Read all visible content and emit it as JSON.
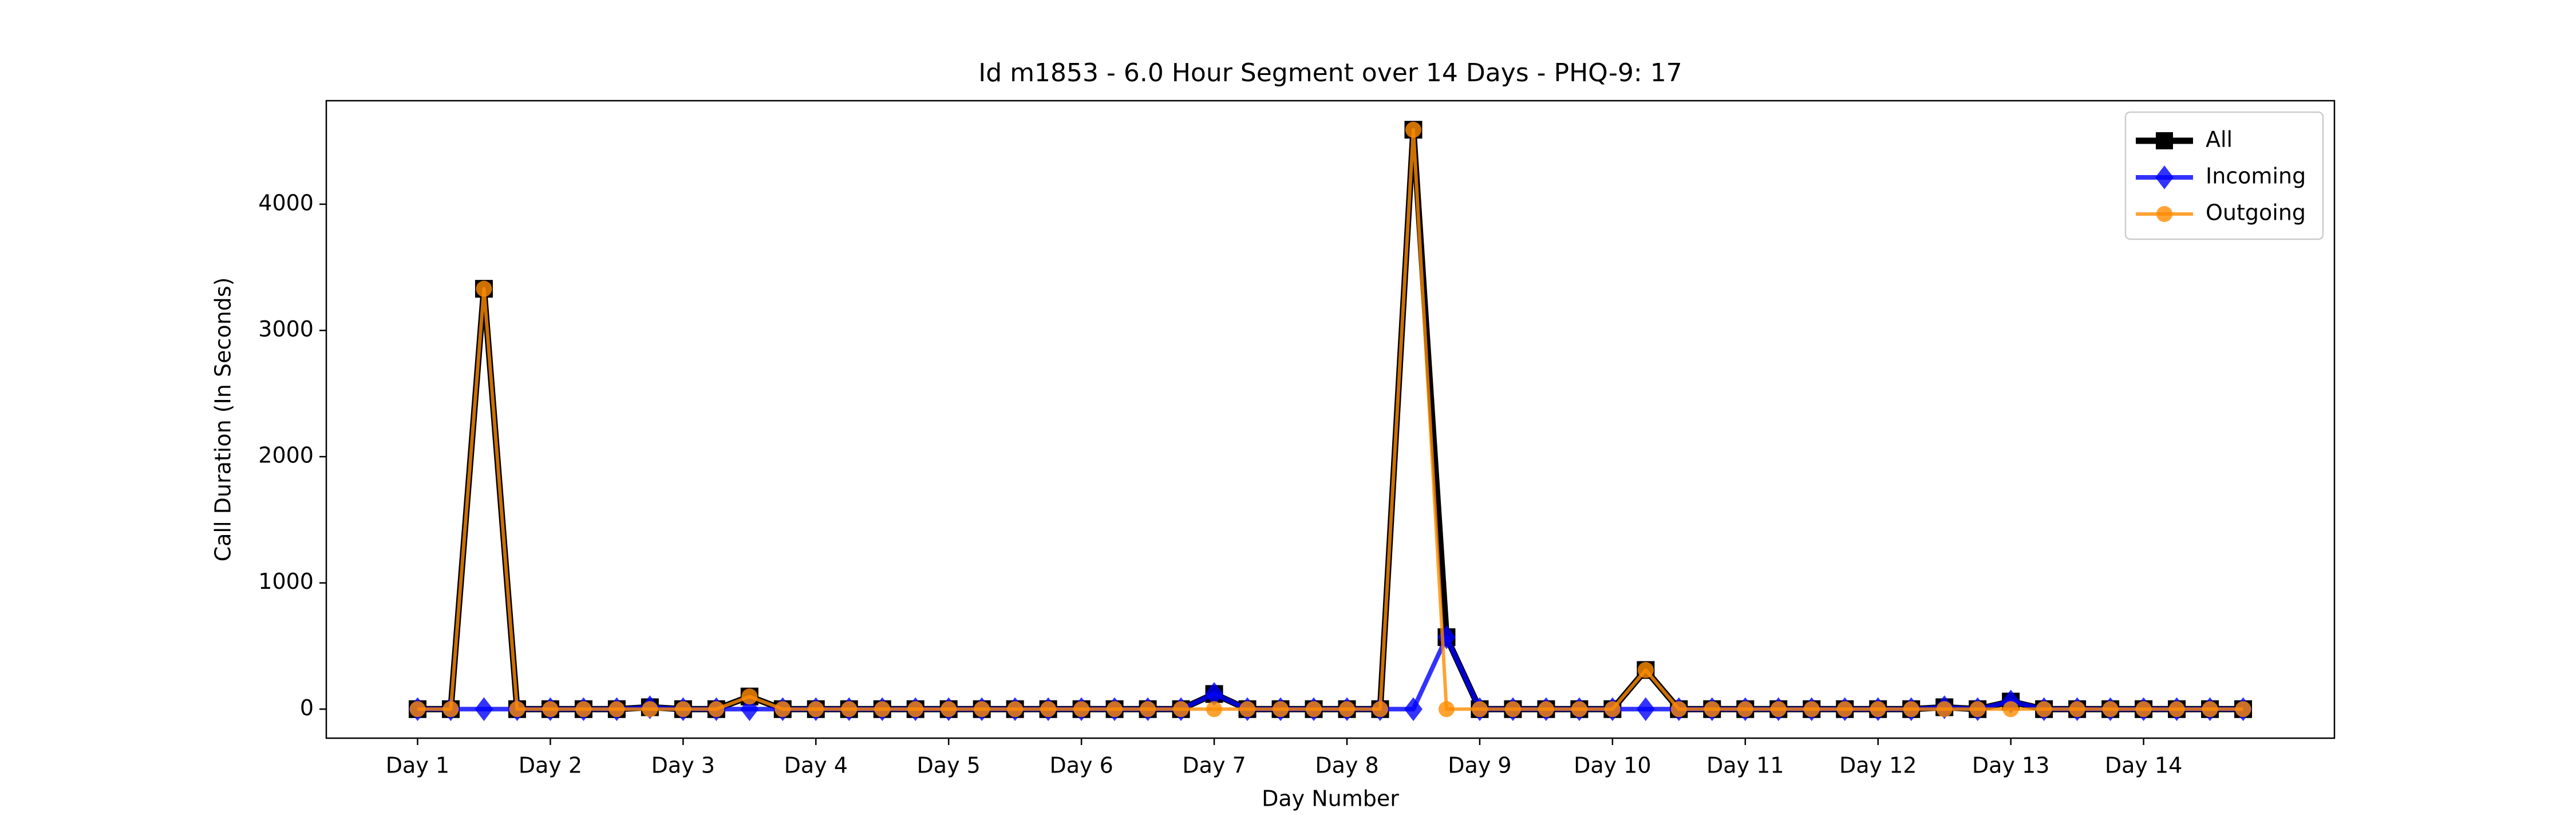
{
  "chart_data": {
    "type": "line",
    "title": "Id m1853 - 6.0 Hour Segment over 14 Days - PHQ-9: 17",
    "x_label": "Day Number",
    "y_label": "Call Duration (In Seconds)",
    "x": [
      0,
      1,
      2,
      3,
      4,
      5,
      6,
      7,
      8,
      9,
      10,
      11,
      12,
      13,
      14,
      15,
      16,
      17,
      18,
      19,
      20,
      21,
      22,
      23,
      24,
      25,
      26,
      27,
      28,
      29,
      30,
      31,
      32,
      33,
      34,
      35,
      36,
      37,
      38,
      39,
      40,
      41,
      42,
      43,
      44,
      45,
      46,
      47,
      48,
      49,
      50,
      51,
      52,
      53,
      54,
      55
    ],
    "series": [
      {
        "name": "All",
        "color": "#000000",
        "marker": "square",
        "values": [
          0,
          0,
          3330,
          0,
          0,
          0,
          0,
          15,
          0,
          0,
          100,
          0,
          0,
          0,
          0,
          0,
          0,
          0,
          0,
          0,
          0,
          0,
          0,
          0,
          120,
          0,
          0,
          0,
          0,
          0,
          4590,
          570,
          0,
          0,
          0,
          0,
          0,
          310,
          0,
          0,
          0,
          0,
          0,
          0,
          0,
          0,
          15,
          0,
          60,
          0,
          0,
          0,
          0,
          0,
          0,
          0
        ]
      },
      {
        "name": "Incoming",
        "color": "#0000ff",
        "marker": "diamond",
        "values": [
          0,
          0,
          0,
          0,
          0,
          0,
          0,
          15,
          0,
          0,
          0,
          0,
          0,
          0,
          0,
          0,
          0,
          0,
          0,
          0,
          0,
          0,
          0,
          0,
          120,
          0,
          0,
          0,
          0,
          0,
          0,
          570,
          0,
          0,
          0,
          0,
          0,
          0,
          0,
          0,
          0,
          0,
          0,
          0,
          0,
          0,
          15,
          0,
          60,
          0,
          0,
          0,
          0,
          0,
          0,
          0
        ]
      },
      {
        "name": "Outgoing",
        "color": "#ff8c00",
        "marker": "circle",
        "values": [
          0,
          0,
          3330,
          0,
          0,
          0,
          0,
          0,
          0,
          0,
          100,
          0,
          0,
          0,
          0,
          0,
          0,
          0,
          0,
          0,
          0,
          0,
          0,
          0,
          0,
          0,
          0,
          0,
          0,
          0,
          4590,
          0,
          0,
          0,
          0,
          0,
          0,
          310,
          0,
          0,
          0,
          0,
          0,
          0,
          0,
          0,
          0,
          0,
          0,
          0,
          0,
          0,
          0,
          0,
          0,
          0
        ]
      }
    ],
    "xlim": [
      -2.75,
      57.75
    ],
    "xticks": [
      {
        "value": 0,
        "label": "Day 1"
      },
      {
        "value": 4,
        "label": "Day 2"
      },
      {
        "value": 8,
        "label": "Day 3"
      },
      {
        "value": 12,
        "label": "Day 4"
      },
      {
        "value": 16,
        "label": "Day 5"
      },
      {
        "value": 20,
        "label": "Day 6"
      },
      {
        "value": 24,
        "label": "Day 7"
      },
      {
        "value": 28,
        "label": "Day 8"
      },
      {
        "value": 32,
        "label": "Day 9"
      },
      {
        "value": 36,
        "label": "Day 10"
      },
      {
        "value": 40,
        "label": "Day 11"
      },
      {
        "value": 44,
        "label": "Day 12"
      },
      {
        "value": 48,
        "label": "Day 13"
      },
      {
        "value": 52,
        "label": "Day 14"
      }
    ],
    "ylim": [
      -230,
      4820
    ],
    "yticks": [
      0,
      1000,
      2000,
      3000,
      4000
    ],
    "legend": "upper right",
    "grid": false
  }
}
